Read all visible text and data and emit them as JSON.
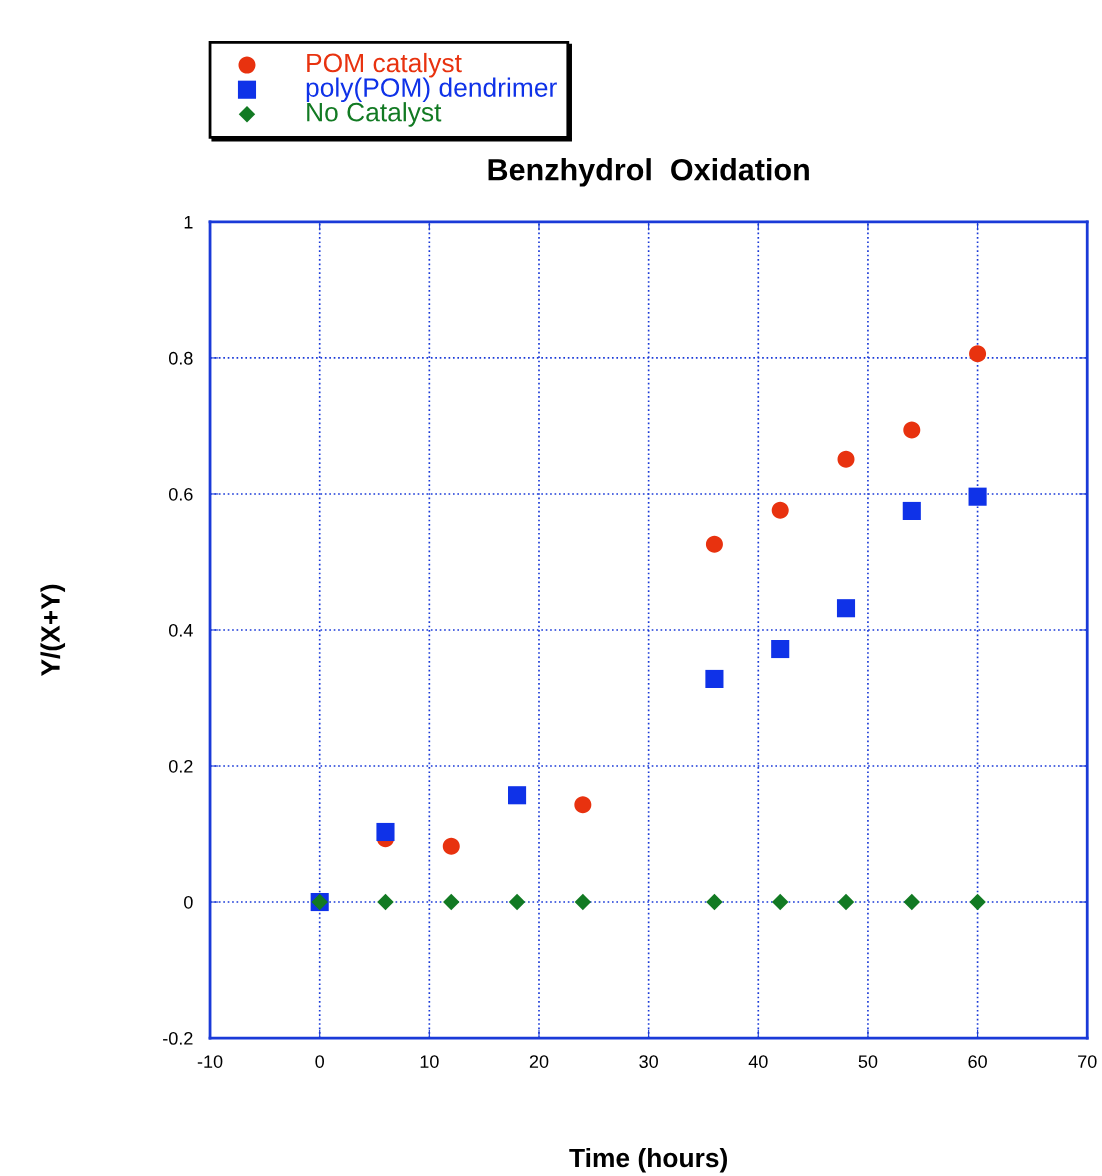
{
  "chart_data": {
    "type": "scatter",
    "title": "Benzhydrol  Oxidation",
    "xlabel": "Time (hours)",
    "ylabel": "Y/(X+Y)",
    "xlim": [
      -10,
      70
    ],
    "xticks": [
      -10,
      0,
      10,
      20,
      30,
      40,
      50,
      60,
      70
    ],
    "ylim": [
      -0.2,
      1
    ],
    "yticks": [
      -0.2,
      0,
      0.2,
      0.4,
      0.6,
      0.8,
      1
    ],
    "grid": true,
    "legend": "top left",
    "series": [
      {
        "name": "POM catalyst",
        "color": "#e8320f",
        "marker": "circle",
        "x": [
          6,
          12,
          24,
          36,
          42,
          48,
          54,
          60
        ],
        "values": [
          0.093,
          0.082,
          0.143,
          0.526,
          0.576,
          0.651,
          0.694,
          0.806
        ]
      },
      {
        "name": "poly(POM) dendrimer",
        "color": "#0f32e8",
        "marker": "square",
        "x": [
          0,
          6,
          18,
          36,
          42,
          48,
          54,
          60
        ],
        "values": [
          0,
          0.103,
          0.157,
          0.328,
          0.372,
          0.432,
          0.575,
          0.596
        ]
      },
      {
        "name": "No Catalyst",
        "color": "#127a23",
        "marker": "diamond",
        "x": [
          0,
          6,
          12,
          18,
          24,
          36,
          42,
          48,
          54,
          60
        ],
        "values": [
          0,
          0,
          0,
          0,
          0,
          0,
          0,
          0,
          0,
          0
        ]
      }
    ]
  }
}
